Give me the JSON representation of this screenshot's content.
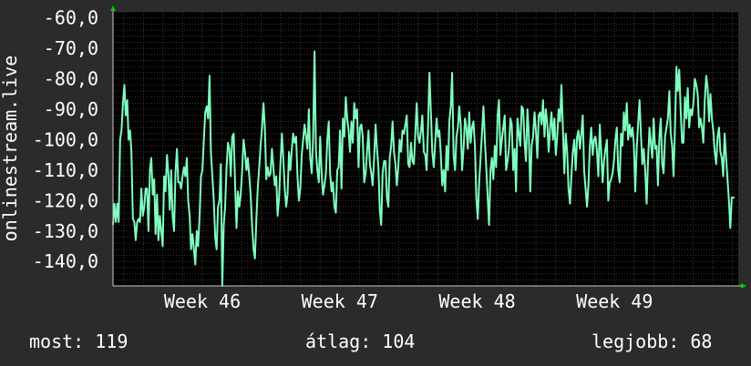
{
  "chart_data": {
    "type": "line",
    "ylabel": "onlinestream.live",
    "ylim": [
      -148,
      -58
    ],
    "y_ticks": [
      -60,
      -70,
      -80,
      -90,
      -100,
      -110,
      -120,
      -130,
      -140
    ],
    "y_tick_labels": [
      "-60,0",
      "-70,0",
      "-80,0",
      "-90,0",
      "-100,0",
      "-110,0",
      "-120,0",
      "-130,0",
      "-140,0"
    ],
    "x_range_weeks": [
      45.35,
      49.9
    ],
    "x_ticks": [
      {
        "label": "Week 46",
        "value": 46
      },
      {
        "label": "Week 47",
        "value": 47
      },
      {
        "label": "Week 48",
        "value": 48
      },
      {
        "label": "Week 49",
        "value": 49
      }
    ],
    "grid": true,
    "colors": {
      "line": "#7fffbf",
      "plot_background": "#000000",
      "page_background": "#2b2b2b",
      "major_grid": "#5a2a2a",
      "minor_grid": "#3a3a3a",
      "axis_arrow": "#00cc00",
      "text": "#ffffff"
    },
    "series": [
      {
        "values": [
          -128,
          -121,
          -127,
          -121,
          -127,
          -100,
          -97,
          -88,
          -82,
          -92,
          -87,
          -100,
          -97,
          -104,
          -126,
          -127,
          -133,
          -127,
          -126,
          -127,
          -116,
          -125,
          -122,
          -116,
          -116,
          -130,
          -110,
          -106,
          -118,
          -113,
          -131,
          -118,
          -133,
          -125,
          -130,
          -135,
          -112,
          -117,
          -105,
          -111,
          -123,
          -110,
          -125,
          -130,
          -111,
          -103,
          -114,
          -114,
          -116,
          -112,
          -109,
          -112,
          -106,
          -120,
          -125,
          -136,
          -131,
          -136,
          -141,
          -130,
          -135,
          -125,
          -112,
          -110,
          -100,
          -91,
          -89,
          -93,
          -79,
          -104,
          -112,
          -120,
          -132,
          -136,
          -122,
          -120,
          -108,
          -148,
          -128,
          -122,
          -109,
          -101,
          -103,
          -112,
          -99,
          -98,
          -114,
          -129,
          -117,
          -122,
          -118,
          -110,
          -100,
          -104,
          -110,
          -106,
          -112,
          -118,
          -128,
          -136,
          -139,
          -126,
          -116,
          -109,
          -102,
          -96,
          -88,
          -96,
          -113,
          -109,
          -112,
          -111,
          -103,
          -109,
          -115,
          -112,
          -125,
          -119,
          -108,
          -98,
          -106,
          -116,
          -122,
          -118,
          -104,
          -110,
          -103,
          -98,
          -101,
          -99,
          -112,
          -120,
          -116,
          -105,
          -100,
          -95,
          -99,
          -103,
          -90,
          -106,
          -111,
          -100,
          -71,
          -104,
          -110,
          -114,
          -99,
          -111,
          -118,
          -115,
          -111,
          -100,
          -94,
          -111,
          -117,
          -114,
          -122,
          -124,
          -110,
          -109,
          -97,
          -116,
          -93,
          -99,
          -86,
          -93,
          -97,
          -104,
          -94,
          -101,
          -88,
          -93,
          -90,
          -109,
          -96,
          -95,
          -99,
          -114,
          -111,
          -104,
          -97,
          -108,
          -111,
          -115,
          -106,
          -95,
          -103,
          -109,
          -123,
          -128,
          -111,
          -107,
          -107,
          -119,
          -122,
          -106,
          -102,
          -94,
          -104,
          -108,
          -115,
          -109,
          -100,
          -104,
          -97,
          -98,
          -95,
          -92,
          -108,
          -109,
          -101,
          -107,
          -108,
          -98,
          -88,
          -99,
          -101,
          -97,
          -92,
          -104,
          -105,
          -110,
          -95,
          -78,
          -91,
          -104,
          -109,
          -101,
          -93,
          -99,
          -97,
          -105,
          -115,
          -110,
          -117,
          -102,
          -110,
          -94,
          -89,
          -78,
          -105,
          -110,
          -99,
          -96,
          -89,
          -95,
          -110,
          -103,
          -93,
          -96,
          -103,
          -91,
          -101,
          -96,
          -94,
          -102,
          -119,
          -126,
          -114,
          -106,
          -98,
          -89,
          -100,
          -109,
          -119,
          -128,
          -110,
          -106,
          -113,
          -102,
          -109,
          -92,
          -87,
          -105,
          -100,
          -96,
          -92,
          -110,
          -107,
          -103,
          -93,
          -95,
          -110,
          -103,
          -117,
          -93,
          -98,
          -102,
          -89,
          -90,
          -101,
          -107,
          -90,
          -98,
          -117,
          -102,
          -99,
          -91,
          -97,
          -106,
          -92,
          -91,
          -95,
          -87,
          -99,
          -90,
          -95,
          -104,
          -96,
          -91,
          -100,
          -93,
          -105,
          -99,
          -90,
          -94,
          -82,
          -96,
          -111,
          -98,
          -104,
          -116,
          -121,
          -112,
          -104,
          -100,
          -110,
          -99,
          -97,
          -103,
          -98,
          -92,
          -110,
          -116,
          -122,
          -115,
          -102,
          -96,
          -105,
          -100,
          -99,
          -104,
          -112,
          -95,
          -104,
          -114,
          -107,
          -103,
          -100,
          -120,
          -114,
          -113,
          -111,
          -107,
          -100,
          -96,
          -110,
          -114,
          -98,
          -102,
          -91,
          -97,
          -88,
          -100,
          -95,
          -99,
          -96,
          -101,
          -117,
          -103,
          -95,
          -87,
          -98,
          -108,
          -103,
          -110,
          -121,
          -107,
          -96,
          -101,
          -106,
          -93,
          -103,
          -102,
          -115,
          -99,
          -93,
          -108,
          -111,
          -99,
          -96,
          -93,
          -84,
          -98,
          -102,
          -112,
          -96,
          -76,
          -84,
          -77,
          -90,
          -101,
          -101,
          -86,
          -93,
          -83,
          -96,
          -90,
          -92,
          -88,
          -80,
          -82,
          -85,
          -96,
          -93,
          -96,
          -101,
          -87,
          -79,
          -83,
          -94,
          -85,
          -93,
          -97,
          -104,
          -108,
          -99,
          -96,
          -104,
          -106,
          -112,
          -98,
          -106,
          -113,
          -120,
          -129,
          -119,
          -119,
          -119
        ]
      }
    ]
  },
  "stats": {
    "current": "most: 119",
    "average": "átlag: 104",
    "best": "legjobb: 68"
  }
}
